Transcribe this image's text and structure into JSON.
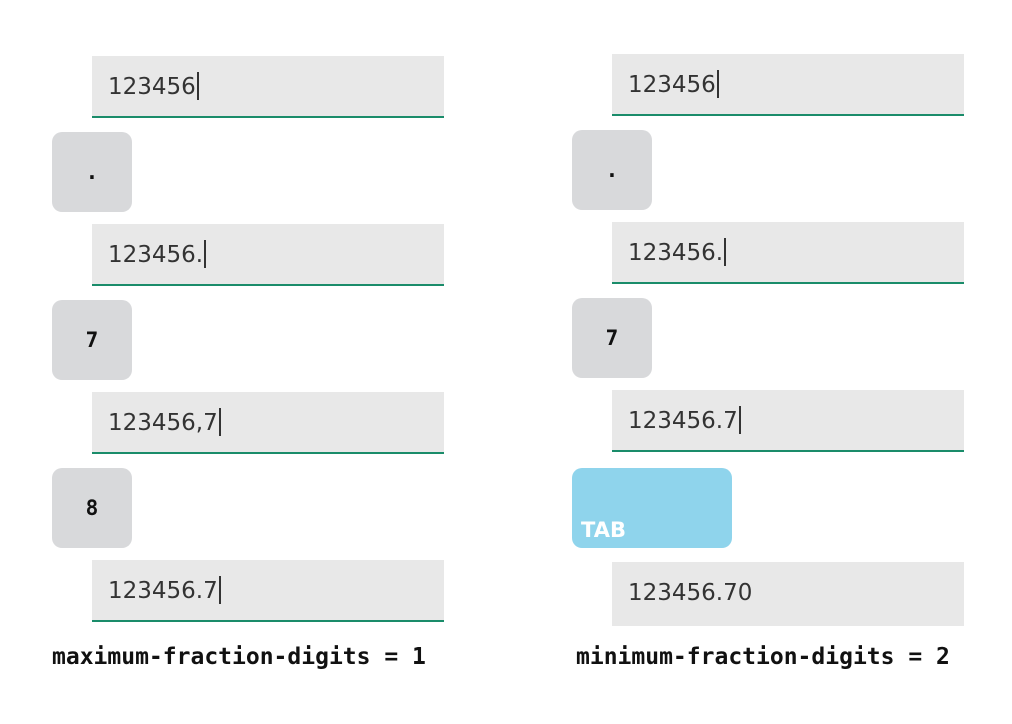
{
  "left": {
    "steps": [
      {
        "field_value": "123456",
        "key_label": "."
      },
      {
        "field_value": "123456.",
        "key_label": "7"
      },
      {
        "field_value": "123456,7",
        "key_label": "8"
      },
      {
        "field_value": "123456.7"
      }
    ],
    "caption": "maximum-fraction-digits = 1"
  },
  "right": {
    "steps": [
      {
        "field_value": "123456",
        "key_label": "."
      },
      {
        "field_value": "123456.",
        "key_label": "7"
      },
      {
        "field_value": "123456.7",
        "key_label": "TAB"
      },
      {
        "field_value": "123456.70"
      }
    ],
    "caption": "minimum-fraction-digits = 2"
  },
  "colors": {
    "field_background": "#e8e8e8",
    "field_underline": "#1a8c6a",
    "key_background": "#d8d9db",
    "tab_key_background": "#8fd4ec"
  }
}
